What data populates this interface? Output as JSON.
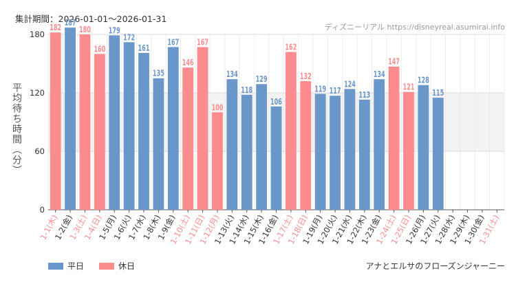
{
  "header": {
    "period": "集計期間：2026-01-01～2026-01-31",
    "site": "ディズニーリアル https://disneyreal.asumirai.info"
  },
  "legend": [
    {
      "label": "平日",
      "color": "#6a97c9"
    },
    {
      "label": "休日",
      "color": "#fd8c8f"
    }
  ],
  "subtitle": "アナとエルサのフローズンジャーニー",
  "chart_data": {
    "type": "bar",
    "title": "集計期間：2026-01-01～2026-01-31",
    "ylabel": "平均待ち時間（分）",
    "xlabel": "",
    "ylim": [
      0,
      180
    ],
    "yticks": [
      0,
      60,
      120,
      180
    ],
    "highlight_band": [
      60,
      120
    ],
    "colors": {
      "weekday": "#6a97c9",
      "holiday": "#fd8c8f"
    },
    "categories": [
      "1-1(木)",
      "1-2(金)",
      "1-3(土)",
      "1-4(日)",
      "1-5(月)",
      "1-6(火)",
      "1-7(水)",
      "1-8(木)",
      "1-9(金)",
      "1-10(土)",
      "1-11(日)",
      "1-12(月)",
      "1-13(火)",
      "1-14(水)",
      "1-15(木)",
      "1-16(金)",
      "1-17(土)",
      "1-18(日)",
      "1-19(月)",
      "1-20(火)",
      "1-21(水)",
      "1-22(木)",
      "1-23(金)",
      "1-24(土)",
      "1-25(日)",
      "1-26(月)",
      "1-27(火)",
      "1-28(水)",
      "1-29(木)",
      "1-30(金)",
      "1-31(土)"
    ],
    "values": [
      182,
      187,
      180,
      160,
      179,
      172,
      161,
      135,
      167,
      146,
      167,
      100,
      134,
      118,
      129,
      106,
      162,
      132,
      119,
      117,
      124,
      113,
      134,
      147,
      121,
      128,
      115,
      null,
      null,
      null,
      null
    ],
    "day_type": [
      "holiday",
      "weekday",
      "holiday",
      "holiday",
      "weekday",
      "weekday",
      "weekday",
      "weekday",
      "weekday",
      "holiday",
      "holiday",
      "holiday",
      "weekday",
      "weekday",
      "weekday",
      "weekday",
      "holiday",
      "holiday",
      "weekday",
      "weekday",
      "weekday",
      "weekday",
      "weekday",
      "holiday",
      "holiday",
      "weekday",
      "weekday",
      "weekday",
      "weekday",
      "weekday",
      "holiday"
    ]
  }
}
